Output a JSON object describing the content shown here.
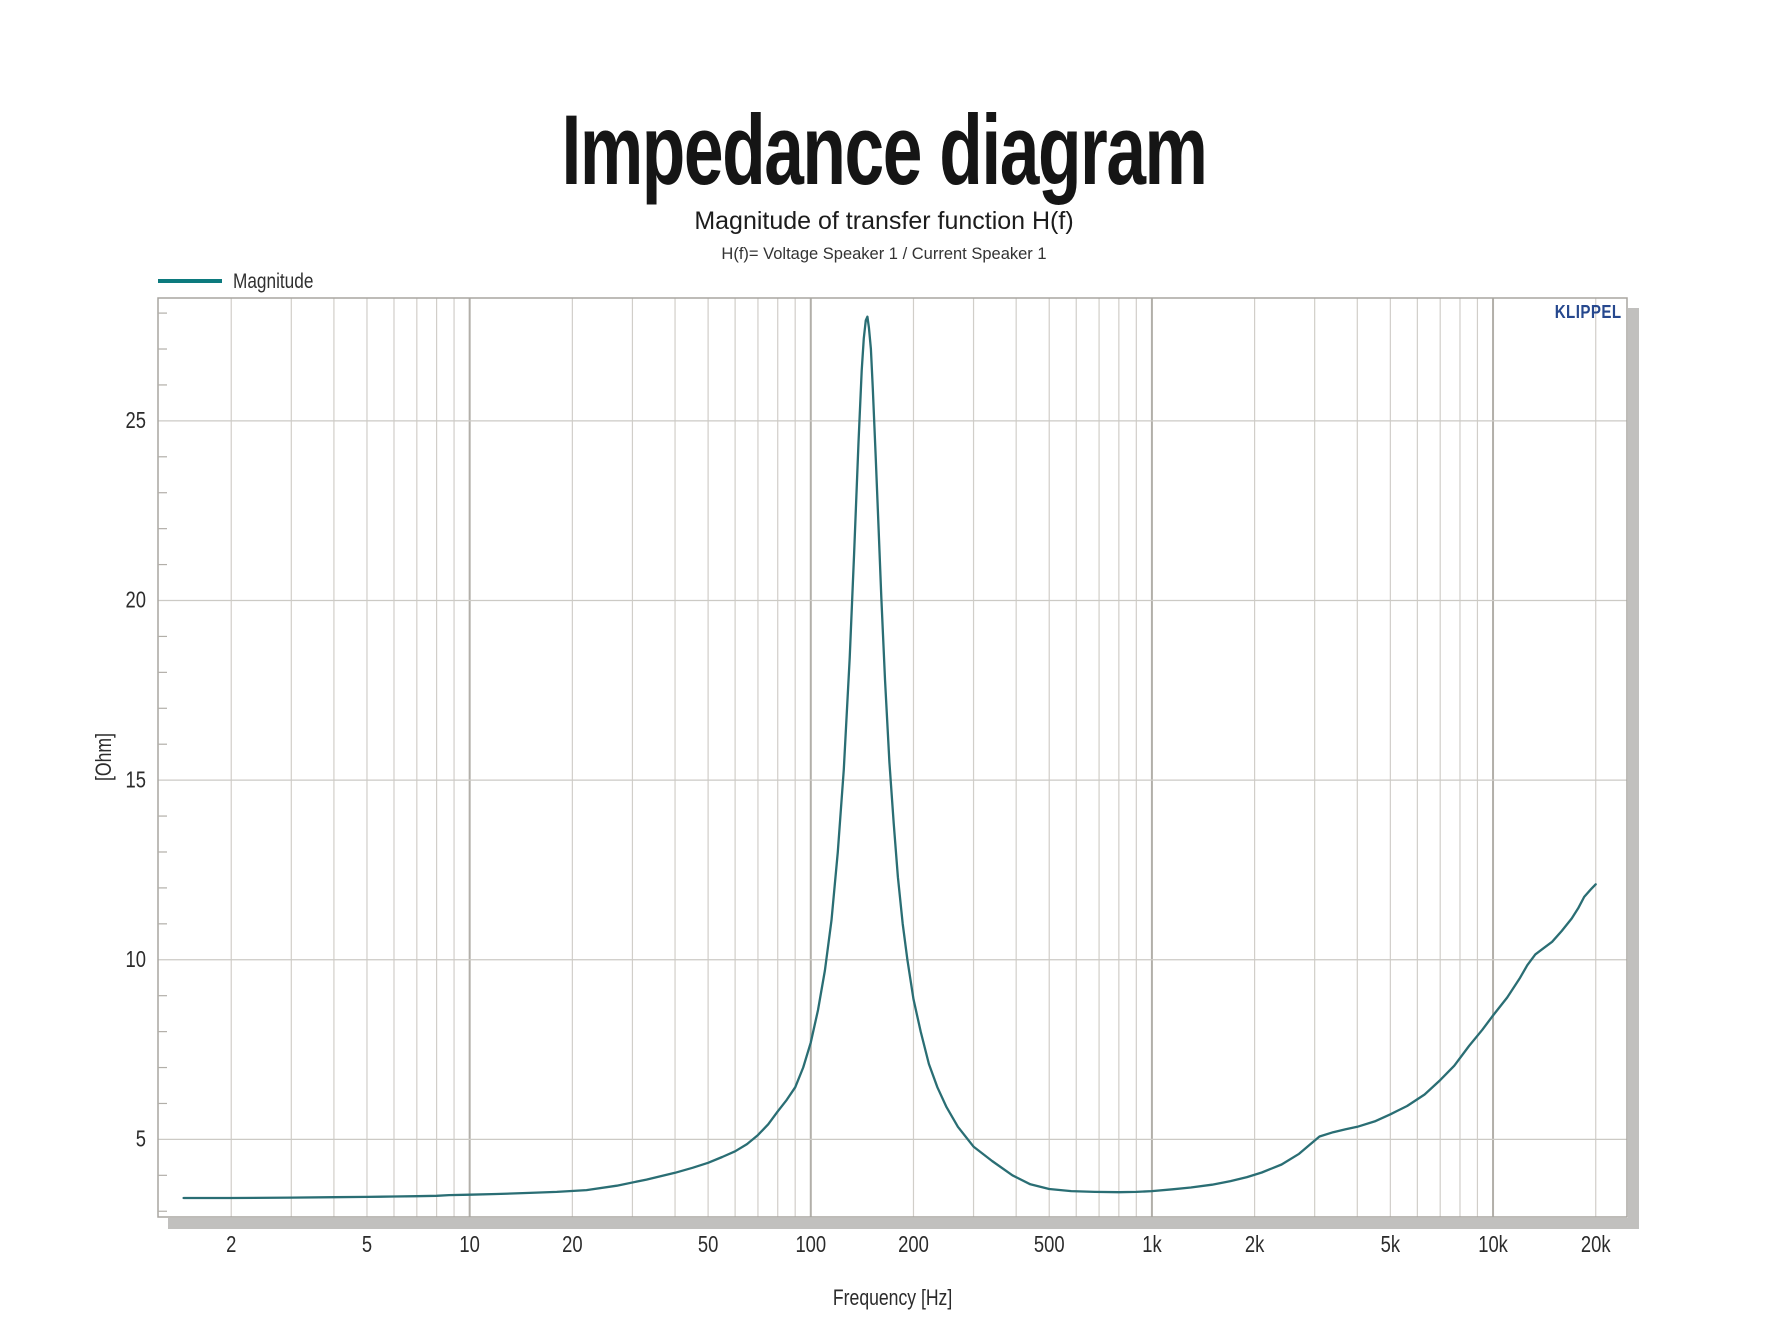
{
  "page": {
    "title": "Impedance diagram"
  },
  "chart": {
    "title": "Magnitude of transfer function H(f)",
    "subtitle": "H(f)= Voltage Speaker 1 / Current Speaker 1",
    "legend": {
      "label": "Magnitude",
      "line_color": "#0c7a7e"
    },
    "watermark": {
      "label": "KLIPPEL",
      "color": "#26488e"
    },
    "xlabel": "Frequency [Hz]",
    "ylabel": "[Ohm]"
  },
  "chart_data": {
    "type": "line",
    "title": "Magnitude of transfer function H(f)",
    "subtitle": "H(f)= Voltage Speaker 1 / Current Speaker 1",
    "xlabel": "Frequency [Hz]",
    "ylabel": "[Ohm]",
    "x_scale": "log",
    "grid": true,
    "legend_position": "top-left",
    "x_range": [
      1.22,
      24700
    ],
    "y_range": [
      2.84,
      28.42
    ],
    "x_ticks": [
      {
        "value": 2,
        "label": "2"
      },
      {
        "value": 5,
        "label": "5"
      },
      {
        "value": 10,
        "label": "10"
      },
      {
        "value": 20,
        "label": "20"
      },
      {
        "value": 50,
        "label": "50"
      },
      {
        "value": 100,
        "label": "100"
      },
      {
        "value": 200,
        "label": "200"
      },
      {
        "value": 500,
        "label": "500"
      },
      {
        "value": 1000,
        "label": "1k"
      },
      {
        "value": 2000,
        "label": "2k"
      },
      {
        "value": 5000,
        "label": "5k"
      },
      {
        "value": 10000,
        "label": "10k"
      },
      {
        "value": 20000,
        "label": "20k"
      }
    ],
    "y_ticks": [
      5,
      10,
      15,
      20,
      25
    ],
    "y_minor_step": 1,
    "resonance_peak": {
      "frequency_hz": 146,
      "impedance_ohm": 27.9
    },
    "series": [
      {
        "name": "Magnitude",
        "color": "#2a6e74",
        "points": [
          [
            1.45,
            3.37
          ],
          [
            2,
            3.37
          ],
          [
            3,
            3.38
          ],
          [
            4,
            3.39
          ],
          [
            5,
            3.4
          ],
          [
            6,
            3.41
          ],
          [
            7,
            3.42
          ],
          [
            8,
            3.43
          ],
          [
            8.7,
            3.45
          ],
          [
            10,
            3.46
          ],
          [
            12,
            3.48
          ],
          [
            15,
            3.51
          ],
          [
            18,
            3.54
          ],
          [
            22,
            3.59
          ],
          [
            27,
            3.71
          ],
          [
            33,
            3.88
          ],
          [
            40,
            4.07
          ],
          [
            45,
            4.21
          ],
          [
            50,
            4.35
          ],
          [
            55,
            4.51
          ],
          [
            60,
            4.67
          ],
          [
            65,
            4.87
          ],
          [
            70,
            5.12
          ],
          [
            75,
            5.42
          ],
          [
            80,
            5.78
          ],
          [
            85,
            6.1
          ],
          [
            90,
            6.45
          ],
          [
            95,
            7.0
          ],
          [
            100,
            7.7
          ],
          [
            105,
            8.6
          ],
          [
            110,
            9.7
          ],
          [
            115,
            11.1
          ],
          [
            120,
            13.0
          ],
          [
            125,
            15.3
          ],
          [
            130,
            18.4
          ],
          [
            134,
            21.3
          ],
          [
            138,
            24.4
          ],
          [
            141,
            26.4
          ],
          [
            143,
            27.3
          ],
          [
            145,
            27.8
          ],
          [
            146.5,
            27.9
          ],
          [
            148,
            27.6
          ],
          [
            150,
            27.0
          ],
          [
            152,
            25.9
          ],
          [
            155,
            24.0
          ],
          [
            158,
            22.0
          ],
          [
            161,
            20.1
          ],
          [
            165,
            17.8
          ],
          [
            170,
            15.5
          ],
          [
            175,
            13.8
          ],
          [
            180,
            12.3
          ],
          [
            186,
            11.0
          ],
          [
            192,
            10.0
          ],
          [
            200,
            8.9
          ],
          [
            210,
            8.0
          ],
          [
            222,
            7.1
          ],
          [
            235,
            6.45
          ],
          [
            250,
            5.9
          ],
          [
            270,
            5.35
          ],
          [
            300,
            4.8
          ],
          [
            340,
            4.4
          ],
          [
            390,
            4.0
          ],
          [
            440,
            3.75
          ],
          [
            500,
            3.62
          ],
          [
            580,
            3.56
          ],
          [
            680,
            3.54
          ],
          [
            800,
            3.53
          ],
          [
            900,
            3.54
          ],
          [
            1000,
            3.56
          ],
          [
            1150,
            3.61
          ],
          [
            1300,
            3.66
          ],
          [
            1500,
            3.74
          ],
          [
            1700,
            3.84
          ],
          [
            1900,
            3.95
          ],
          [
            2100,
            4.08
          ],
          [
            2400,
            4.3
          ],
          [
            2700,
            4.6
          ],
          [
            2900,
            4.85
          ],
          [
            3100,
            5.08
          ],
          [
            3400,
            5.2
          ],
          [
            3700,
            5.28
          ],
          [
            4000,
            5.35
          ],
          [
            4500,
            5.5
          ],
          [
            5000,
            5.7
          ],
          [
            5600,
            5.93
          ],
          [
            6300,
            6.25
          ],
          [
            7000,
            6.65
          ],
          [
            7700,
            7.05
          ],
          [
            8500,
            7.6
          ],
          [
            9300,
            8.05
          ],
          [
            10000,
            8.45
          ],
          [
            11000,
            8.95
          ],
          [
            12000,
            9.5
          ],
          [
            12600,
            9.85
          ],
          [
            13300,
            10.15
          ],
          [
            14100,
            10.33
          ],
          [
            14900,
            10.5
          ],
          [
            15900,
            10.8
          ],
          [
            17000,
            11.15
          ],
          [
            17800,
            11.45
          ],
          [
            18500,
            11.75
          ],
          [
            19300,
            11.95
          ],
          [
            20000,
            12.1
          ]
        ]
      }
    ]
  }
}
